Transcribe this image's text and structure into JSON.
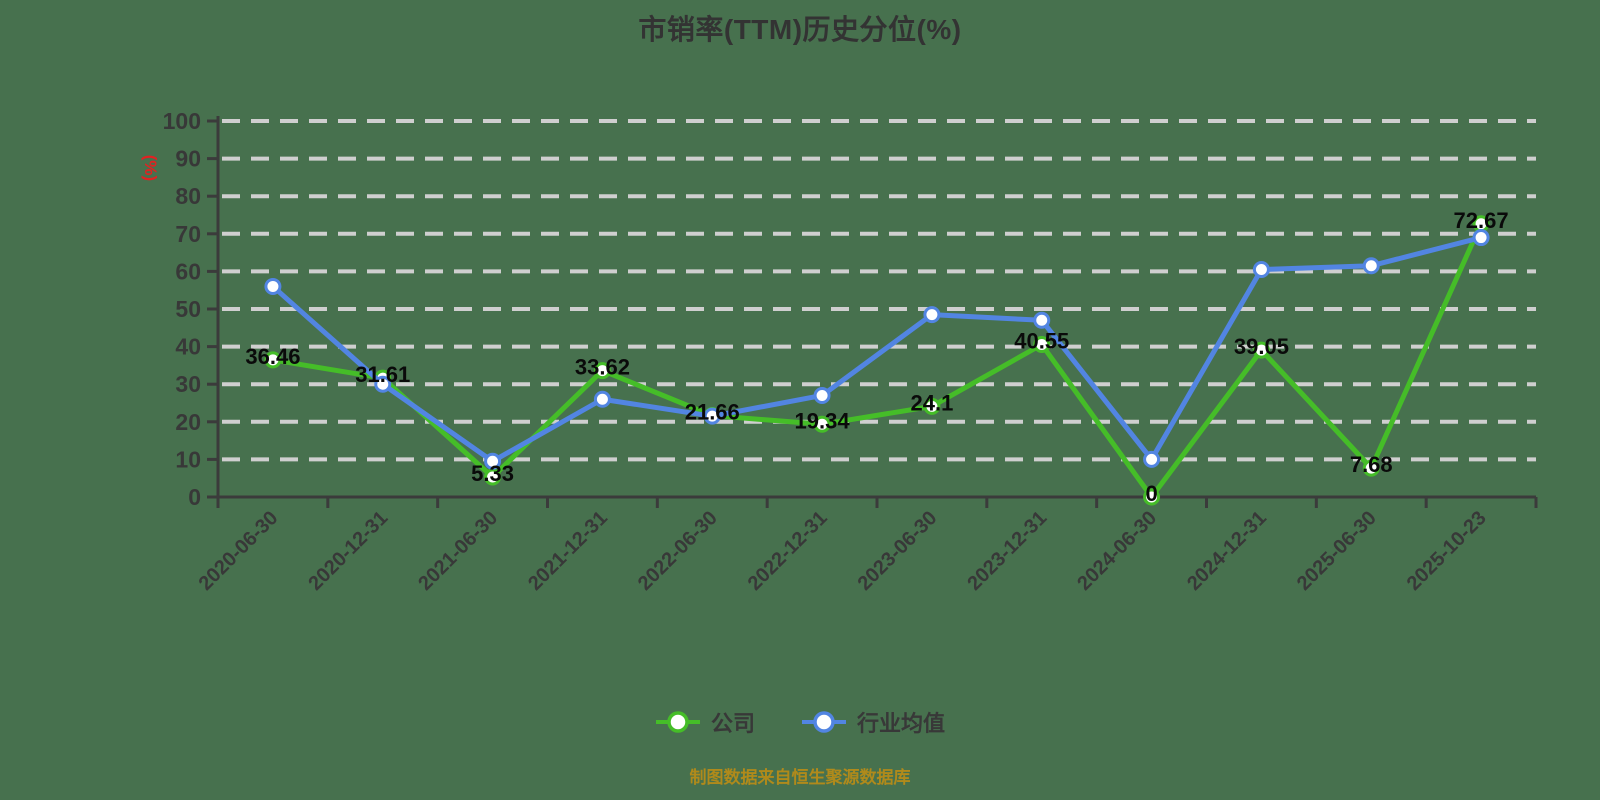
{
  "title": "市销率(TTM)历史分位(%)",
  "y_axis_unit": "(%)",
  "footer": "制图数据来自恒生聚源数据库",
  "colors": {
    "background": "#47714e",
    "gridline": "#cfcfcf",
    "axis": "#3b3b3b",
    "tick_label": "#383838",
    "title": "#333333",
    "series_company": "#45bd28",
    "series_industry": "#5285e2",
    "data_label": "#0a0a0a",
    "y_unit_label": "#e02222",
    "footer_text": "#b08a1b"
  },
  "legend": [
    {
      "label": "公司",
      "color": "#45bd28"
    },
    {
      "label": "行业均值",
      "color": "#5285e2"
    }
  ],
  "chart_data": {
    "type": "line",
    "title": "市销率(TTM)历史分位(%)",
    "ylabel": "(%)",
    "xlabel": "",
    "ylim": [
      0,
      100
    ],
    "y_ticks": [
      0,
      10,
      20,
      30,
      40,
      50,
      60,
      70,
      80,
      90,
      100
    ],
    "grid": "dashed-horizontal",
    "legend_position": "bottom",
    "categories": [
      "2020-06-30",
      "2020-12-31",
      "2021-06-30",
      "2021-12-31",
      "2022-06-30",
      "2022-12-31",
      "2023-06-30",
      "2023-12-31",
      "2024-06-30",
      "2024-12-31",
      "2025-06-30",
      "2025-10-23"
    ],
    "series": [
      {
        "name": "公司",
        "color": "#45bd28",
        "values": [
          36.46,
          31.61,
          5.33,
          33.62,
          21.66,
          19.34,
          24.1,
          40.55,
          0,
          39.05,
          7.68,
          72.67
        ],
        "labels": [
          "36.46",
          "31.61",
          "5.33",
          "33.62",
          "21.66",
          "19.34",
          "24.1",
          "40.55",
          "0",
          "39.05",
          "7.68",
          "72.67"
        ],
        "show_labels": true
      },
      {
        "name": "行业均值",
        "color": "#5285e2",
        "values": [
          56,
          30,
          9.5,
          26,
          21.5,
          27,
          48.5,
          47,
          10,
          60.5,
          61.5,
          69
        ],
        "labels": [],
        "show_labels": false
      }
    ]
  }
}
